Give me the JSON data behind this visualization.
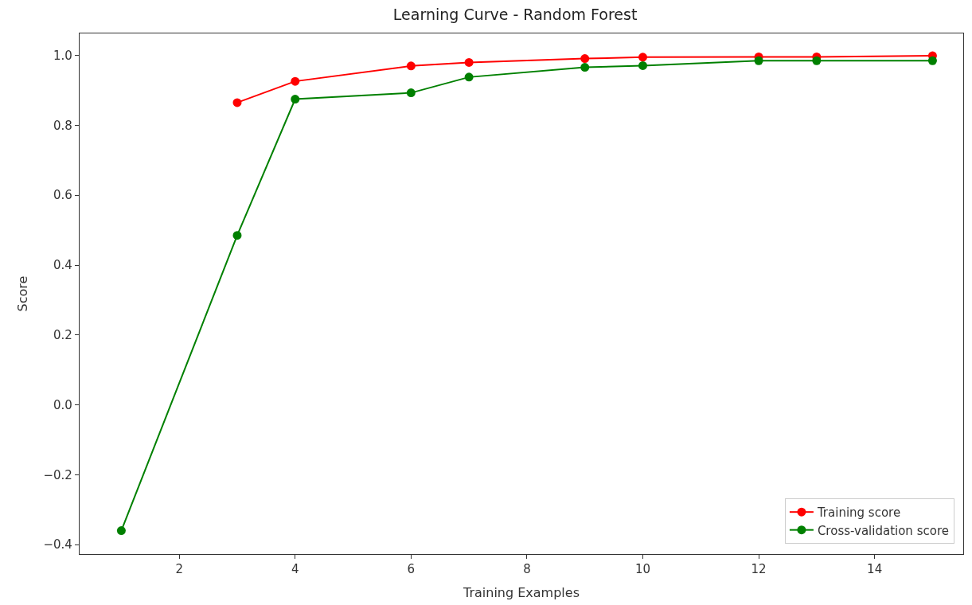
{
  "chart_data": {
    "type": "line",
    "title": "Learning Curve - Random Forest",
    "xlabel": "Training Examples",
    "ylabel": "Score",
    "series": [
      {
        "name": "Training score",
        "color": "#ff0000",
        "x": [
          3,
          4,
          6,
          7,
          9,
          10,
          12,
          13,
          15
        ],
        "values": [
          0.865,
          0.926,
          0.97,
          0.98,
          0.991,
          0.995,
          0.996,
          0.996,
          0.999
        ]
      },
      {
        "name": "Cross-validation score",
        "color": "#008000",
        "x": [
          1,
          3,
          4,
          6,
          7,
          9,
          10,
          12,
          13,
          15
        ],
        "values": [
          -0.36,
          0.485,
          0.875,
          0.893,
          0.938,
          0.966,
          0.971,
          0.985,
          0.985,
          0.985
        ]
      }
    ],
    "xlim": [
      0.28,
      15.53
    ],
    "xticks": [
      2,
      4,
      6,
      8,
      10,
      12,
      14
    ],
    "ylim": [
      -0.427,
      1.063
    ],
    "yticks": [
      {
        "value": -0.4,
        "label": "−0.4"
      },
      {
        "value": -0.2,
        "label": "−0.2"
      },
      {
        "value": 0,
        "label": "0.0"
      },
      0.2,
      0.4,
      0.6,
      0.8,
      {
        "value": 1,
        "label": "1.0"
      }
    ],
    "legend": "bottom right",
    "marker": "circle",
    "line_style": "solid"
  }
}
